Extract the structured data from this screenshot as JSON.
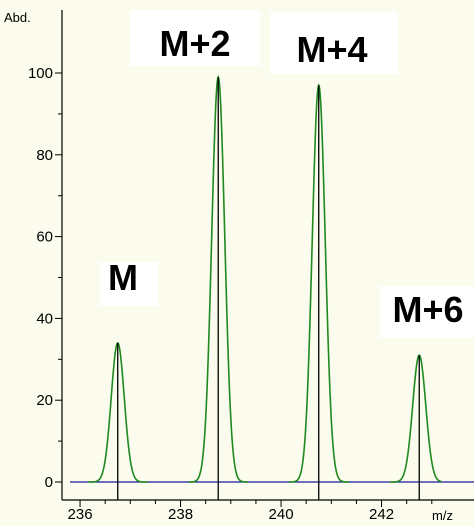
{
  "chart_data": {
    "type": "line",
    "ylabel": "Abd.",
    "xlabel": "m/z",
    "xlim": [
      235.8,
      243.2
    ],
    "ylim": [
      0,
      105
    ],
    "xticks": [
      236,
      238,
      240,
      242
    ],
    "xtick_labels": [
      "236",
      "238",
      "240",
      "242"
    ],
    "yticks": [
      0,
      20,
      40,
      60,
      80,
      100
    ],
    "ytick_labels": [
      "0",
      "20",
      "40",
      "60",
      "80",
      "100"
    ],
    "peak_width_sigma": 0.13,
    "peaks": [
      {
        "label": "M",
        "mz": 236.75,
        "abundance": 34
      },
      {
        "label": "M+2",
        "mz": 238.75,
        "abundance": 99
      },
      {
        "label": "M+4",
        "mz": 240.75,
        "abundance": 97
      },
      {
        "label": "M+6",
        "mz": 242.75,
        "abundance": 31
      }
    ],
    "colors": {
      "profile": "#1f8a1f",
      "baseline": "#1a1aa0",
      "stick": "#000000",
      "background": "#fbfbee"
    },
    "grid": false
  }
}
